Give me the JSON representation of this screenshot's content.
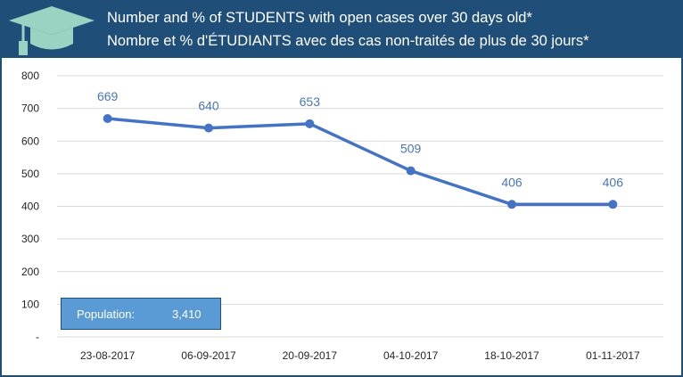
{
  "title": {
    "line1": "Number and % of STUDENTS with open cases over 30 days old*",
    "line2": "Nombre et % d'ÉTUDIANTS avec des cas non-traités de plus de 30 jours*"
  },
  "population": {
    "label": "Population:",
    "value": "3,410"
  },
  "colors": {
    "header": "#1f4e79",
    "line": "#4472c4",
    "box": "#5b9bd5",
    "logo": "#9bd3c2"
  },
  "icons": {
    "logo": "graduation-cap-icon"
  },
  "chart_data": {
    "type": "line",
    "categories": [
      "23-08-2017",
      "06-09-2017",
      "20-09-2017",
      "04-10-2017",
      "18-10-2017",
      "01-11-2017"
    ],
    "series": [
      {
        "values": [
          669,
          640,
          653,
          509,
          406,
          406
        ]
      }
    ],
    "ylim": [
      0,
      800
    ],
    "yticks": [
      0,
      100,
      200,
      300,
      400,
      500,
      600,
      700,
      800
    ],
    "ytick_labels": [
      "-",
      "100",
      "200",
      "300",
      "400",
      "500",
      "600",
      "700",
      "800"
    ],
    "grid": true,
    "legend": "none"
  }
}
